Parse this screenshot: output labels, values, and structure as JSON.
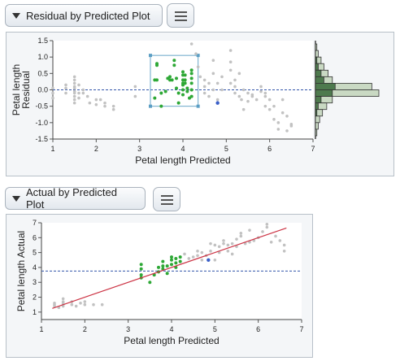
{
  "outline1": {
    "title": "Residual by Predicted Plot"
  },
  "outline2": {
    "title": "Actual by Predicted Plot"
  },
  "colors": {
    "gray_point": "#c2c2c2",
    "selected_point": "#2ea836",
    "highlight_point": "#3a5fc8",
    "fit_line": "#cc3344",
    "mean_line": "#3355aa",
    "hist_fill": "#c9d9c3",
    "hist_selected": "#4e7a4e"
  },
  "chart_data": [
    {
      "type": "scatter",
      "xlabel": "Petal length Predicted",
      "ylabel": [
        "Petal length",
        "Residual"
      ],
      "xlim": [
        1,
        7
      ],
      "ylim": [
        -1.5,
        1.5
      ],
      "x_ticks": [
        "1",
        "2",
        "3",
        "4",
        "5",
        "6",
        "7"
      ],
      "y_ticks": [
        "1.5",
        "1.0",
        "0.5",
        "0.0",
        "-0.5",
        "-1.0",
        "-1.5"
      ],
      "y_tick_values": [
        1.5,
        1.0,
        0.5,
        0.0,
        -0.5,
        -1.0,
        -1.5
      ],
      "reference_line_y": 0,
      "selection_box": {
        "x": [
          3.25,
          4.35
        ],
        "y": [
          -0.5,
          1.05
        ]
      },
      "gray_points": [
        [
          1.0,
          0.05
        ],
        [
          1.0,
          -0.1
        ],
        [
          1.0,
          -0.25
        ],
        [
          1.3,
          0.15
        ],
        [
          1.3,
          0.05
        ],
        [
          1.3,
          -0.1
        ],
        [
          1.5,
          0.4
        ],
        [
          1.5,
          0.3
        ],
        [
          1.5,
          0.2
        ],
        [
          1.5,
          0.1
        ],
        [
          1.5,
          0.05
        ],
        [
          1.5,
          -0.05
        ],
        [
          1.5,
          -0.1
        ],
        [
          1.5,
          -0.2
        ],
        [
          1.5,
          -0.3
        ],
        [
          1.5,
          -0.4
        ],
        [
          1.6,
          0.15
        ],
        [
          1.6,
          -0.1
        ],
        [
          1.6,
          -0.25
        ],
        [
          1.7,
          0.0
        ],
        [
          1.7,
          -0.1
        ],
        [
          1.8,
          -0.2
        ],
        [
          1.85,
          -0.4
        ],
        [
          2.0,
          -0.3
        ],
        [
          2.0,
          -0.45
        ],
        [
          2.1,
          -0.3
        ],
        [
          2.2,
          -0.4
        ],
        [
          2.2,
          -0.5
        ],
        [
          2.4,
          -0.5
        ],
        [
          2.4,
          -0.6
        ],
        [
          2.9,
          0.1
        ],
        [
          2.9,
          -0.2
        ],
        [
          4.2,
          1.4
        ],
        [
          4.3,
          1.1
        ],
        [
          4.35,
          0.7
        ],
        [
          4.4,
          0.4
        ],
        [
          4.5,
          0.3
        ],
        [
          4.5,
          0.1
        ],
        [
          4.5,
          -0.1
        ],
        [
          4.6,
          0.2
        ],
        [
          4.6,
          -0.2
        ],
        [
          4.7,
          0.9
        ],
        [
          4.7,
          0.5
        ],
        [
          4.7,
          0.0
        ],
        [
          4.8,
          0.2
        ],
        [
          4.8,
          -0.3
        ],
        [
          4.9,
          0.4
        ],
        [
          4.9,
          0.0
        ],
        [
          5.1,
          1.2
        ],
        [
          5.1,
          0.85
        ],
        [
          5.1,
          0.6
        ],
        [
          5.1,
          0.2
        ],
        [
          5.2,
          0.3
        ],
        [
          5.2,
          0.1
        ],
        [
          5.2,
          -0.1
        ],
        [
          5.3,
          0.5
        ],
        [
          5.3,
          -0.2
        ],
        [
          5.35,
          -0.3
        ],
        [
          5.4,
          0.0
        ],
        [
          5.4,
          -0.6
        ],
        [
          5.5,
          -0.1
        ],
        [
          5.5,
          -0.35
        ],
        [
          5.6,
          -0.15
        ],
        [
          5.6,
          -0.2
        ],
        [
          5.7,
          -0.3
        ],
        [
          5.8,
          0.1
        ],
        [
          5.8,
          -0.05
        ],
        [
          5.9,
          -0.1
        ],
        [
          5.9,
          -0.2
        ],
        [
          5.9,
          -0.5
        ],
        [
          6.0,
          -0.3
        ],
        [
          6.0,
          -0.6
        ],
        [
          6.1,
          -0.5
        ],
        [
          6.1,
          -0.9
        ],
        [
          6.2,
          -1.0
        ],
        [
          6.2,
          -1.2
        ],
        [
          6.3,
          -0.3
        ],
        [
          6.3,
          -0.7
        ],
        [
          6.4,
          -0.8
        ],
        [
          6.4,
          -1.25
        ],
        [
          6.5,
          -1.05
        ],
        [
          6.5,
          -1.1
        ]
      ],
      "selected_points": [
        [
          3.35,
          0.3
        ],
        [
          3.35,
          -0.25
        ],
        [
          3.4,
          0.8
        ],
        [
          3.4,
          0.75
        ],
        [
          3.4,
          0.3
        ],
        [
          3.5,
          -0.1
        ],
        [
          3.5,
          -0.5
        ],
        [
          3.6,
          -0.05
        ],
        [
          3.65,
          0.35
        ],
        [
          3.7,
          0.4
        ],
        [
          3.7,
          0.3
        ],
        [
          3.75,
          0.3
        ],
        [
          3.8,
          0.9
        ],
        [
          3.8,
          0.75
        ],
        [
          3.85,
          0.35
        ],
        [
          3.85,
          0.05
        ],
        [
          3.9,
          -0.1
        ],
        [
          3.9,
          -0.4
        ],
        [
          4.0,
          0.55
        ],
        [
          4.0,
          0.45
        ],
        [
          4.0,
          0.3
        ],
        [
          4.0,
          0.2
        ],
        [
          4.0,
          0.15
        ],
        [
          4.0,
          0.0
        ],
        [
          4.0,
          -0.15
        ],
        [
          4.05,
          0.45
        ],
        [
          4.05,
          0.3
        ],
        [
          4.05,
          0.2
        ],
        [
          4.1,
          0.05
        ],
        [
          4.1,
          -0.05
        ],
        [
          4.15,
          -0.25
        ],
        [
          4.2,
          0.6
        ],
        [
          4.2,
          0.5
        ],
        [
          4.2,
          0.35
        ],
        [
          4.2,
          0.2
        ],
        [
          4.2,
          0.0
        ],
        [
          4.2,
          -0.2
        ]
      ],
      "highlight_points": [
        [
          4.8,
          -0.4
        ]
      ],
      "histogram": {
        "bins": [
          1.4,
          1.2,
          1.0,
          0.8,
          0.6,
          0.4,
          0.2,
          0.0,
          -0.2,
          -0.4,
          -0.6,
          -0.8,
          -1.0,
          -1.2
        ],
        "counts": [
          1,
          2,
          4,
          6,
          9,
          12,
          40,
          45,
          12,
          8,
          5,
          3,
          2,
          1
        ],
        "selected_counts": [
          0,
          0,
          1,
          2,
          4,
          6,
          14,
          12,
          4,
          2,
          1,
          0,
          0,
          0
        ],
        "max_count": 45
      }
    },
    {
      "type": "scatter",
      "xlabel": "Petal length Predicted",
      "ylabel": "Petal length Actual",
      "xlim": [
        1,
        7
      ],
      "ylim": [
        0.5,
        7
      ],
      "x_ticks": [
        "1",
        "2",
        "3",
        "4",
        "5",
        "6",
        "7"
      ],
      "y_ticks": [
        "7",
        "6",
        "5",
        "4",
        "3",
        "2",
        "1"
      ],
      "y_tick_values": [
        7,
        6,
        5,
        4,
        3,
        2,
        1
      ],
      "mean_line_y": 3.76,
      "fit_line": {
        "x": [
          1.25,
          6.65
        ],
        "y": [
          1.25,
          6.65
        ]
      },
      "gray_points": [
        [
          1.3,
          1.4
        ],
        [
          1.3,
          1.5
        ],
        [
          1.3,
          1.6
        ],
        [
          1.4,
          1.3
        ],
        [
          1.5,
          1.4
        ],
        [
          1.5,
          1.5
        ],
        [
          1.5,
          1.6
        ],
        [
          1.5,
          1.7
        ],
        [
          1.5,
          1.9
        ],
        [
          1.7,
          1.5
        ],
        [
          1.7,
          1.7
        ],
        [
          1.8,
          1.4
        ],
        [
          1.9,
          1.6
        ],
        [
          2.0,
          1.5
        ],
        [
          2.0,
          1.7
        ],
        [
          2.2,
          1.5
        ],
        [
          2.4,
          1.5
        ],
        [
          4.3,
          4.9
        ],
        [
          4.4,
          4.6
        ],
        [
          4.5,
          4.7
        ],
        [
          4.6,
          4.8
        ],
        [
          4.6,
          5.1
        ],
        [
          4.7,
          4.5
        ],
        [
          4.7,
          5.0
        ],
        [
          4.8,
          4.8
        ],
        [
          4.9,
          5.1
        ],
        [
          5.0,
          4.5
        ],
        [
          5.0,
          5.5
        ],
        [
          5.1,
          5.0
        ],
        [
          5.2,
          5.6
        ],
        [
          5.2,
          5.8
        ],
        [
          5.3,
          5.1
        ],
        [
          5.3,
          5.5
        ],
        [
          5.4,
          4.9
        ],
        [
          5.5,
          5.4
        ],
        [
          5.5,
          5.9
        ],
        [
          5.6,
          6.1
        ],
        [
          5.6,
          6.3
        ],
        [
          5.7,
          5.6
        ],
        [
          5.8,
          5.7
        ],
        [
          5.8,
          6.5
        ],
        [
          5.9,
          5.8
        ],
        [
          6.0,
          6.0
        ],
        [
          6.1,
          6.4
        ],
        [
          6.2,
          6.7
        ],
        [
          6.2,
          6.9
        ],
        [
          6.3,
          5.7
        ],
        [
          6.4,
          6.1
        ],
        [
          6.5,
          5.8
        ],
        [
          6.6,
          5.5
        ],
        [
          6.6,
          5.1
        ],
        [
          4.9,
          5.6
        ],
        [
          5.1,
          5.4
        ],
        [
          5.4,
          5.6
        ]
      ],
      "selected_points": [
        [
          3.3,
          3.3
        ],
        [
          3.3,
          3.5
        ],
        [
          3.3,
          3.9
        ],
        [
          3.3,
          4.2
        ],
        [
          3.5,
          3.0
        ],
        [
          3.6,
          3.5
        ],
        [
          3.7,
          3.7
        ],
        [
          3.7,
          4.0
        ],
        [
          3.8,
          4.1
        ],
        [
          3.8,
          4.4
        ],
        [
          3.8,
          3.9
        ],
        [
          3.9,
          4.1
        ],
        [
          3.9,
          3.6
        ],
        [
          4.0,
          4.2
        ],
        [
          4.0,
          4.5
        ],
        [
          4.0,
          4.7
        ],
        [
          4.1,
          4.3
        ],
        [
          4.1,
          4.6
        ],
        [
          4.1,
          4.0
        ],
        [
          4.2,
          4.7
        ],
        [
          4.2,
          4.4
        ]
      ],
      "highlight_points": [
        [
          4.85,
          4.5
        ]
      ]
    }
  ]
}
